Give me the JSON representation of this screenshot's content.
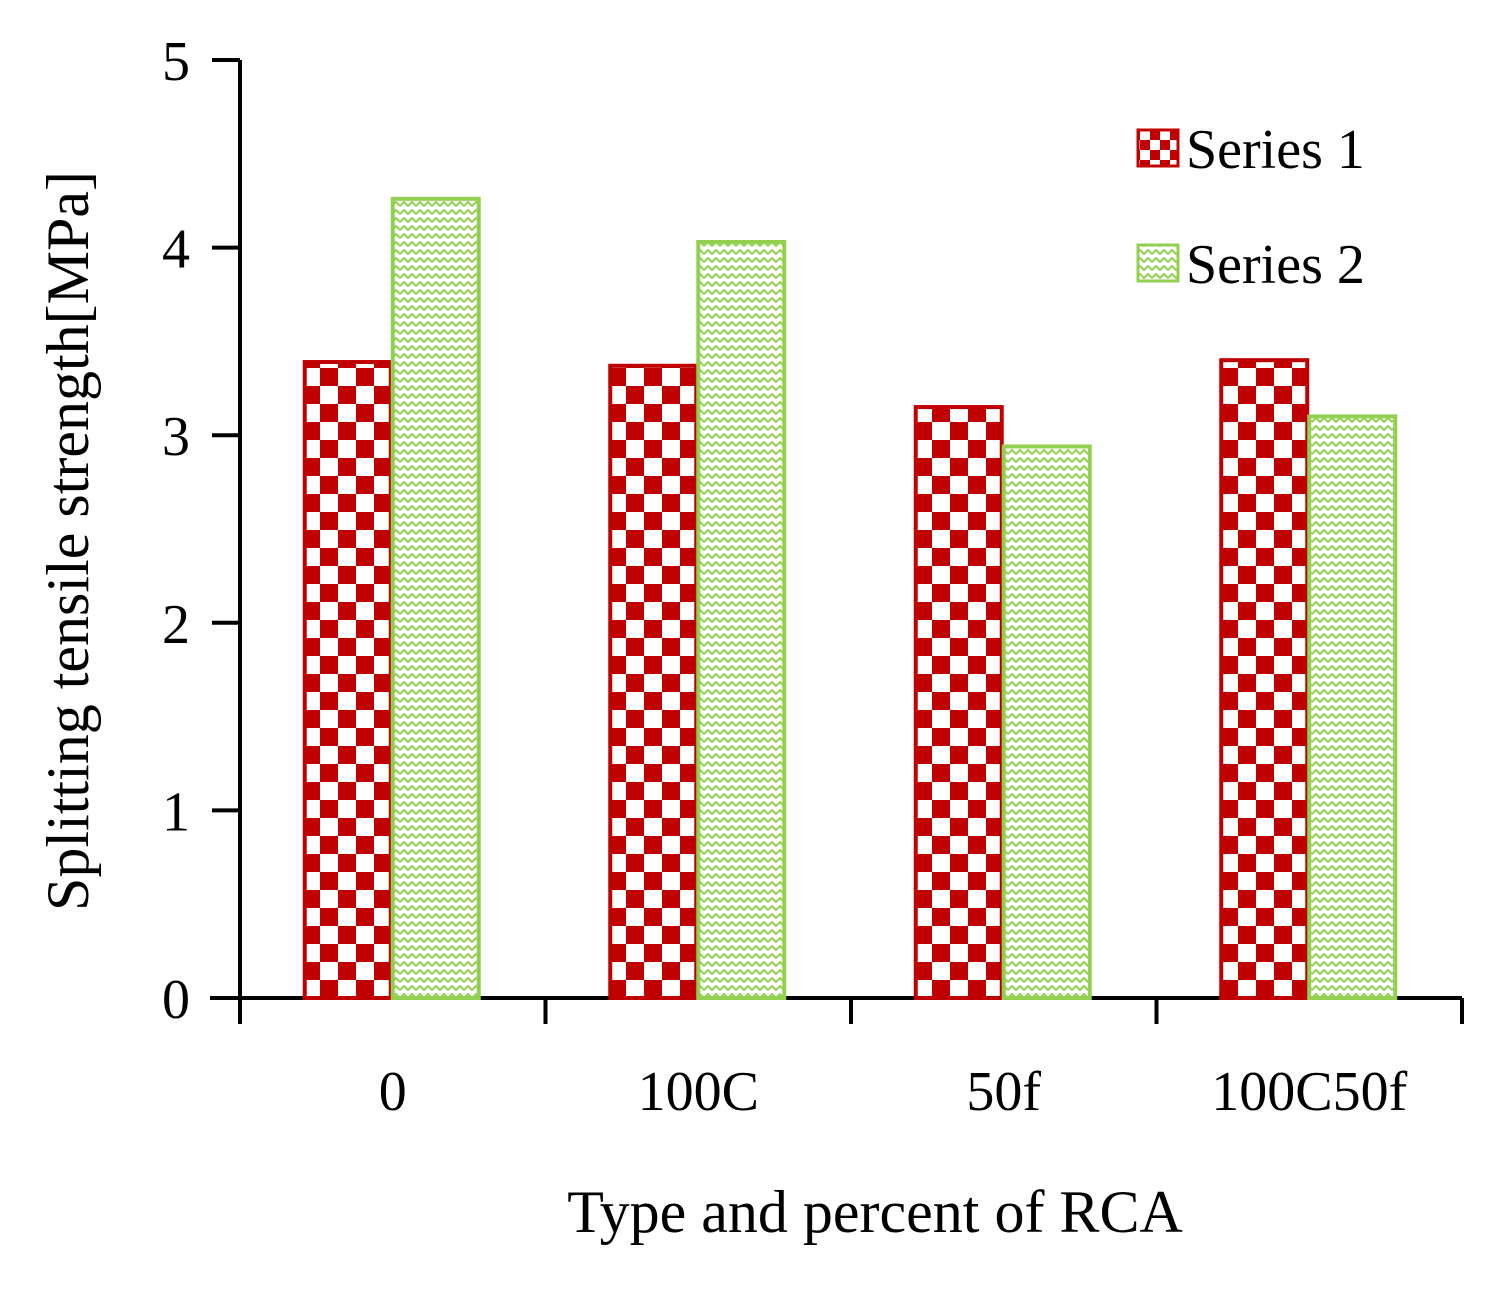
{
  "chart_data": {
    "type": "bar",
    "categories": [
      "0",
      "100C",
      "50f",
      "100C50f"
    ],
    "series": [
      {
        "name": "Series 1",
        "values": [
          3.39,
          3.37,
          3.15,
          3.4
        ],
        "color": "#c00000",
        "pattern": "checkerboard"
      },
      {
        "name": "Series 2",
        "values": [
          4.26,
          4.03,
          2.94,
          3.1
        ],
        "color": "#92d050",
        "pattern": "zigzag"
      }
    ],
    "title": "",
    "xlabel": "Type and percent of RCA",
    "ylabel": "Splitting tensile strength[MPa]",
    "ylim": [
      0,
      5
    ],
    "yticks": [
      "0",
      "1",
      "2",
      "3",
      "4",
      "5"
    ],
    "grid": false,
    "legend_position": "top-right"
  }
}
